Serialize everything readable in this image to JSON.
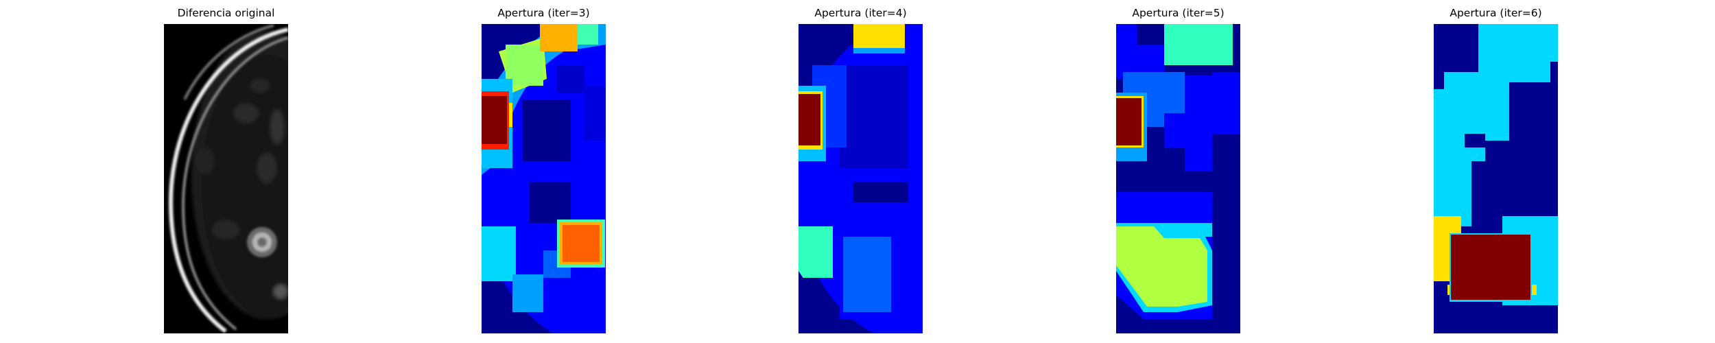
{
  "figure": {
    "panels": [
      {
        "title": "Diferencia original",
        "colormap": "gray",
        "image": "original-difference"
      },
      {
        "title": "Apertura (iter=3)",
        "colormap": "jet",
        "image": "opening-iter-3"
      },
      {
        "title": "Apertura (iter=4)",
        "colormap": "jet",
        "image": "opening-iter-4"
      },
      {
        "title": "Apertura (iter=5)",
        "colormap": "jet",
        "image": "opening-iter-5"
      },
      {
        "title": "Apertura (iter=6)",
        "colormap": "jet",
        "image": "opening-iter-6"
      }
    ]
  },
  "colors": {
    "jet_dark_blue": "#00008f",
    "jet_blue": "#0000ff",
    "jet_mid_blue": "#0060ff",
    "jet_cyan": "#00d8ff",
    "jet_aqua": "#30ffc0",
    "jet_yellow_green": "#b0ff40",
    "jet_yellow": "#ffe000",
    "jet_orange": "#ff6000",
    "jet_dark_red": "#800000"
  }
}
